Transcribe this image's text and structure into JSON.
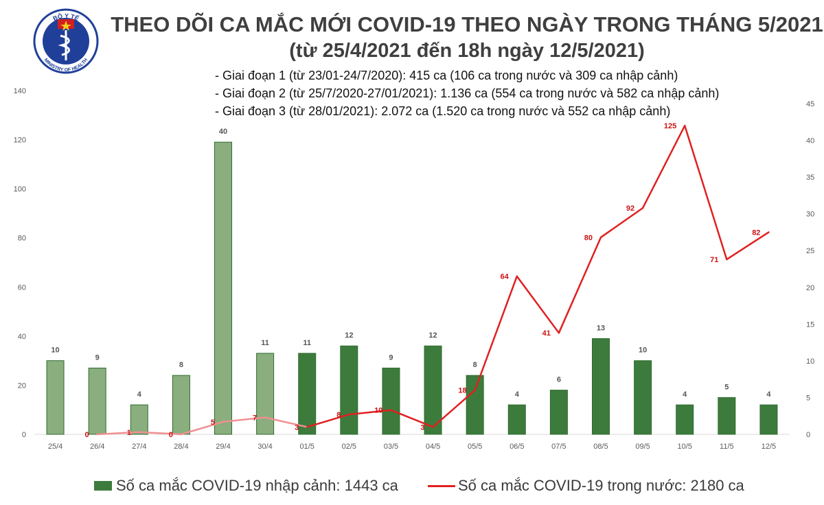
{
  "header": {
    "title_line1": "THEO DÕI CA MẮC MỚI COVID-19 THEO NGÀY TRONG THÁNG 5/2021",
    "title_line2": "(từ 25/4/2021 đến 18h ngày 12/5/2021)"
  },
  "logo": {
    "text_top": "BỘ Y TẾ",
    "text_bottom": "MINISTRY OF HEALTH",
    "colors": {
      "ring": "#1f3f99",
      "star": "#f0d020",
      "flag": "#d02020",
      "symbol": "#ffffff"
    }
  },
  "phases": [
    "- Giai đoạn 1 (từ 23/01-24/7/2020): 415 ca (106 ca trong nước và 309 ca nhập cảnh)",
    "- Giai đoạn 2 (từ 25/7/2020-27/01/2021): 1.136 ca (554 ca trong nước và 582 ca nhập cảnh)",
    "- Giai đoạn 3 (từ 28/01/2021): 2.072 ca (1.520 ca trong nước và 552 ca nhập cảnh)"
  ],
  "chart_data": {
    "type": "bar",
    "categories": [
      "25/4",
      "26/4",
      "27/4",
      "28/4",
      "29/4",
      "30/4",
      "01/5",
      "02/5",
      "03/5",
      "04/5",
      "05/5",
      "06/5",
      "07/5",
      "08/5",
      "09/5",
      "10/5",
      "11/5",
      "12/5"
    ],
    "series": [
      {
        "name": "Số ca mắc COVID-19 nhập cảnh: 1443 ca",
        "type": "bar",
        "axis": "left",
        "values": [
          30,
          27,
          12,
          24,
          119,
          33,
          33,
          36,
          27,
          36,
          24,
          12,
          18,
          39,
          30,
          12,
          15,
          12
        ],
        "labels": [
          "10",
          "9",
          "4",
          "8",
          "40",
          "11",
          "11",
          "12",
          "9",
          "12",
          "8",
          "4",
          "6",
          "13",
          "10",
          "4",
          "5",
          "4"
        ]
      },
      {
        "name": "Số ca mắc COVID-19 trong nước: 2180 ca",
        "type": "line",
        "axis": "right",
        "values": [
          null,
          0,
          0.3,
          0,
          1.7,
          2.3,
          1.0,
          2.7,
          3.3,
          1.0,
          6.0,
          21.5,
          13.8,
          26.8,
          30.8,
          42.0,
          23.8,
          27.5
        ],
        "labels": [
          "",
          "0",
          "1",
          "0",
          "5",
          "7",
          "3",
          "8",
          "10",
          "3",
          "18",
          "64",
          "41",
          "80",
          "92",
          "125",
          "71",
          "82"
        ]
      }
    ],
    "y_left": {
      "ticks": [
        "0",
        "20",
        "40",
        "60",
        "80",
        "100",
        "120",
        "140"
      ],
      "ylim": [
        0,
        140
      ]
    },
    "y_right": {
      "ticks": [
        "0",
        "5",
        "10",
        "15",
        "20",
        "25",
        "30",
        "35",
        "40",
        "45"
      ],
      "ylim": [
        0,
        45
      ]
    },
    "legend": "bottom",
    "grid": false,
    "colors": {
      "bar_light": "#8aae7e",
      "bar_dark": "#3d7b3d",
      "bar_border": "#2e6b2e",
      "line_dark": "#e02020",
      "line_light": "#f09090",
      "bar_label": "#555555",
      "line_label": "#cc1111",
      "axis_text": "#595959"
    }
  }
}
